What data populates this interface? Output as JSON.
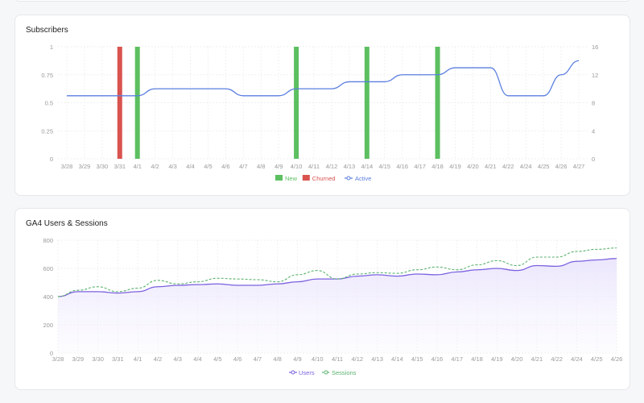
{
  "cards": {
    "subscribers_title": "Subscribers",
    "ga4_title": "GA4 Users & Sessions"
  },
  "chart_data": [
    {
      "type": "bar",
      "title": "Subscribers",
      "categories": [
        "3/28",
        "3/29",
        "3/30",
        "3/31",
        "4/1",
        "4/2",
        "4/3",
        "4/4",
        "4/5",
        "4/6",
        "4/7",
        "4/8",
        "4/9",
        "4/10",
        "4/11",
        "4/12",
        "4/13",
        "4/14",
        "4/15",
        "4/16",
        "4/17",
        "4/18",
        "4/19",
        "4/20",
        "4/21",
        "4/22",
        "4/24",
        "4/25",
        "4/26",
        "4/27"
      ],
      "y_left_ticks": [
        "0",
        "0.25",
        "0.5",
        "0.75",
        "1"
      ],
      "y_right_ticks": [
        "0",
        "4",
        "8",
        "12",
        "16"
      ],
      "ylim_left": [
        0,
        1
      ],
      "ylim_right": [
        0,
        16
      ],
      "grid": true,
      "legend_position": "bottom",
      "series": [
        {
          "name": "New",
          "type": "bar",
          "axis": "left",
          "color": "#5cbf60",
          "values": [
            0,
            0,
            0,
            0,
            1,
            0,
            0,
            0,
            0,
            0,
            0,
            0,
            0,
            1,
            0,
            0,
            0,
            1,
            0,
            0,
            0,
            1,
            0,
            0,
            0,
            0,
            0,
            0,
            0,
            0
          ]
        },
        {
          "name": "Churned",
          "type": "bar",
          "axis": "left",
          "color": "#d9534f",
          "values": [
            0,
            0,
            0,
            1,
            0,
            0,
            0,
            0,
            0,
            0,
            0,
            0,
            0,
            0,
            0,
            0,
            0,
            0,
            0,
            0,
            0,
            0,
            0,
            0,
            0,
            0,
            0,
            0,
            0,
            0
          ]
        },
        {
          "name": "Active",
          "type": "line",
          "axis": "right",
          "color": "#5b7fe0",
          "values": [
            9,
            9,
            9,
            9,
            9,
            10,
            10,
            10,
            10,
            10,
            9,
            9,
            9,
            10,
            10,
            10,
            11,
            11,
            11,
            12,
            12,
            12,
            13,
            13,
            13,
            9,
            9,
            9,
            12,
            14
          ]
        }
      ]
    },
    {
      "type": "area",
      "title": "GA4 Users & Sessions",
      "categories": [
        "3/28",
        "3/29",
        "3/30",
        "3/31",
        "4/1",
        "4/2",
        "4/3",
        "4/4",
        "4/5",
        "4/6",
        "4/7",
        "4/8",
        "4/9",
        "4/10",
        "4/11",
        "4/12",
        "4/13",
        "4/14",
        "4/15",
        "4/16",
        "4/17",
        "4/18",
        "4/19",
        "4/20",
        "4/21",
        "4/22",
        "4/24",
        "4/25",
        "4/26"
      ],
      "y_ticks": [
        "0",
        "200",
        "400",
        "600",
        "800"
      ],
      "ylim": [
        0,
        800
      ],
      "grid": true,
      "legend_position": "bottom",
      "series": [
        {
          "name": "Users",
          "type": "area",
          "color": "#7b61e0",
          "fill": "#efeafd",
          "values": [
            400,
            435,
            435,
            425,
            435,
            470,
            480,
            485,
            490,
            480,
            480,
            490,
            505,
            525,
            525,
            545,
            555,
            545,
            560,
            555,
            575,
            590,
            600,
            585,
            620,
            615,
            650,
            660,
            670
          ]
        },
        {
          "name": "Sessions",
          "type": "line",
          "style": "dashed",
          "color": "#59b26d",
          "values": [
            400,
            445,
            470,
            435,
            460,
            515,
            490,
            505,
            530,
            525,
            520,
            505,
            555,
            585,
            525,
            560,
            570,
            565,
            590,
            610,
            590,
            625,
            655,
            620,
            680,
            680,
            720,
            735,
            745
          ]
        }
      ]
    }
  ]
}
